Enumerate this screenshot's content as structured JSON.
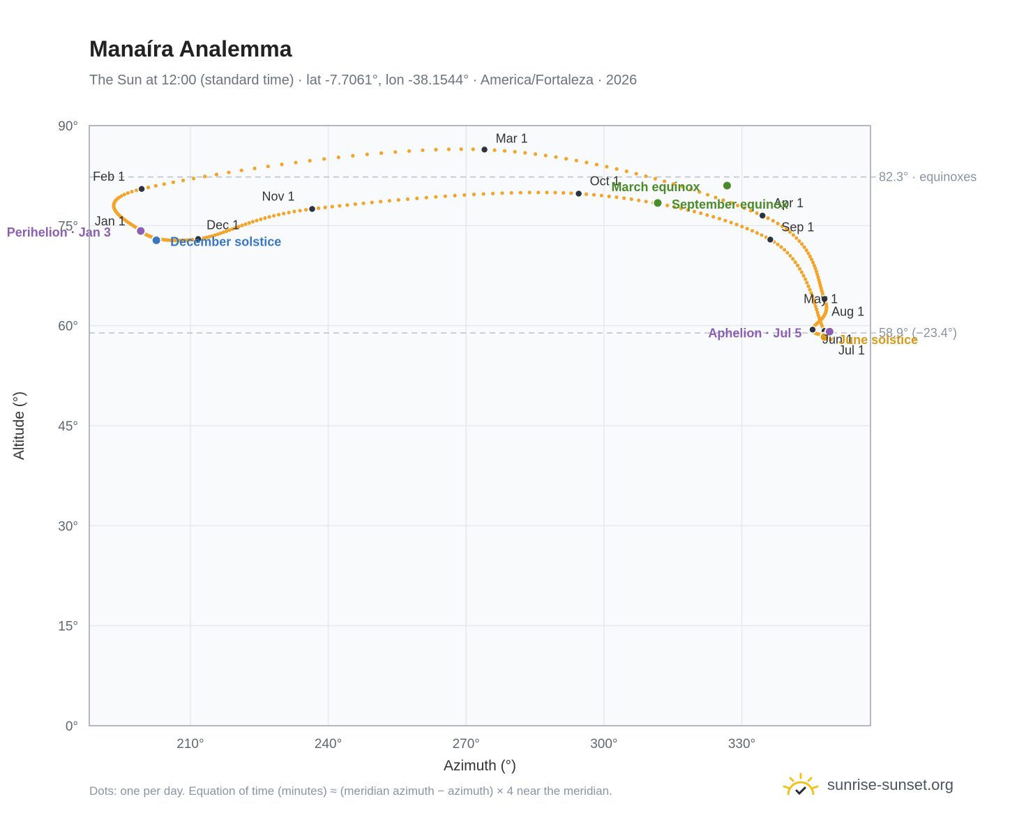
{
  "header": {
    "title": "Manaíra Analemma",
    "subtitle": "The Sun at 12:00 (standard time) · lat -7.7061°, lon -38.1544° · America/Fortaleza · 2026"
  },
  "footer": {
    "note": "Dots: one per day. Equation of time (minutes) ≈ (meridian azimuth − azimuth) × 4 near the meridian.",
    "brand": "sunrise-sunset.org"
  },
  "colors": {
    "curve": "#f2a52a",
    "month_dot": "#2d3340",
    "equinox": "#4a8c2a",
    "december_solstice": "#3a78c0",
    "june_solstice": "#d99a1a",
    "apsis": "#8c5fb5",
    "plot_bg": "#f8fafc",
    "grid": "#e5e9ef",
    "frame": "#9aa3b0",
    "refline": "#b8c0ca"
  },
  "chart_data": {
    "type": "scatter",
    "title": "Manaíra Analemma",
    "xlabel": "Azimuth (°)",
    "ylabel": "Altitude (°)",
    "xlim": [
      188,
      358
    ],
    "ylim": [
      0,
      90
    ],
    "x_ticks": [
      210,
      240,
      270,
      300,
      330
    ],
    "x_tick_labels": [
      "210°",
      "240°",
      "270°",
      "300°",
      "330°"
    ],
    "y_ticks": [
      0,
      15,
      30,
      45,
      60,
      75,
      90
    ],
    "y_tick_labels": [
      "0°",
      "15°",
      "30°",
      "45°",
      "60°",
      "75°",
      "90°"
    ],
    "grid": true,
    "month_markers": [
      {
        "label": "Jan 1",
        "az": 199.2,
        "alt": 74.2
      },
      {
        "label": "Feb 1",
        "az": 199.4,
        "alt": 80.5
      },
      {
        "label": "Mar 1",
        "az": 274.0,
        "alt": 86.4
      },
      {
        "label": "Apr 1",
        "az": 334.5,
        "alt": 76.5
      },
      {
        "label": "May 1",
        "az": 348.0,
        "alt": 64.0
      },
      {
        "label": "Jun 1",
        "az": 345.4,
        "alt": 59.4
      },
      {
        "label": "Jul 1",
        "az": 348.9,
        "alt": 58.6
      },
      {
        "label": "Aug 1",
        "az": 348.0,
        "alt": 59.2
      },
      {
        "label": "Sep 1",
        "az": 336.2,
        "alt": 72.9
      },
      {
        "label": "Oct 1",
        "az": 294.5,
        "alt": 79.8
      },
      {
        "label": "Nov 1",
        "az": 236.5,
        "alt": 77.5
      },
      {
        "label": "Dec 1",
        "az": 211.7,
        "alt": 73.0
      }
    ],
    "events": [
      {
        "label": "March equinox",
        "az": 326.8,
        "alt": 81.0,
        "kind": "equinox"
      },
      {
        "label": "September equinox",
        "az": 311.7,
        "alt": 78.4,
        "kind": "equinox"
      },
      {
        "label": "December solstice",
        "az": 202.6,
        "alt": 72.8,
        "kind": "december_solstice"
      },
      {
        "label": "June solstice",
        "az": 348.0,
        "alt": 58.3,
        "kind": "june_solstice"
      },
      {
        "label": "Perihelion · Jan 3",
        "az": 199.2,
        "alt": 74.2,
        "kind": "apsis"
      },
      {
        "label": "Aphelion · Jul 5",
        "az": 349.1,
        "alt": 59.1,
        "kind": "apsis"
      }
    ],
    "reference_lines": [
      {
        "alt": 82.3,
        "label": "82.3° · equinoxes"
      },
      {
        "alt": 58.9,
        "label": "58.9° (−23.4°)"
      }
    ]
  }
}
